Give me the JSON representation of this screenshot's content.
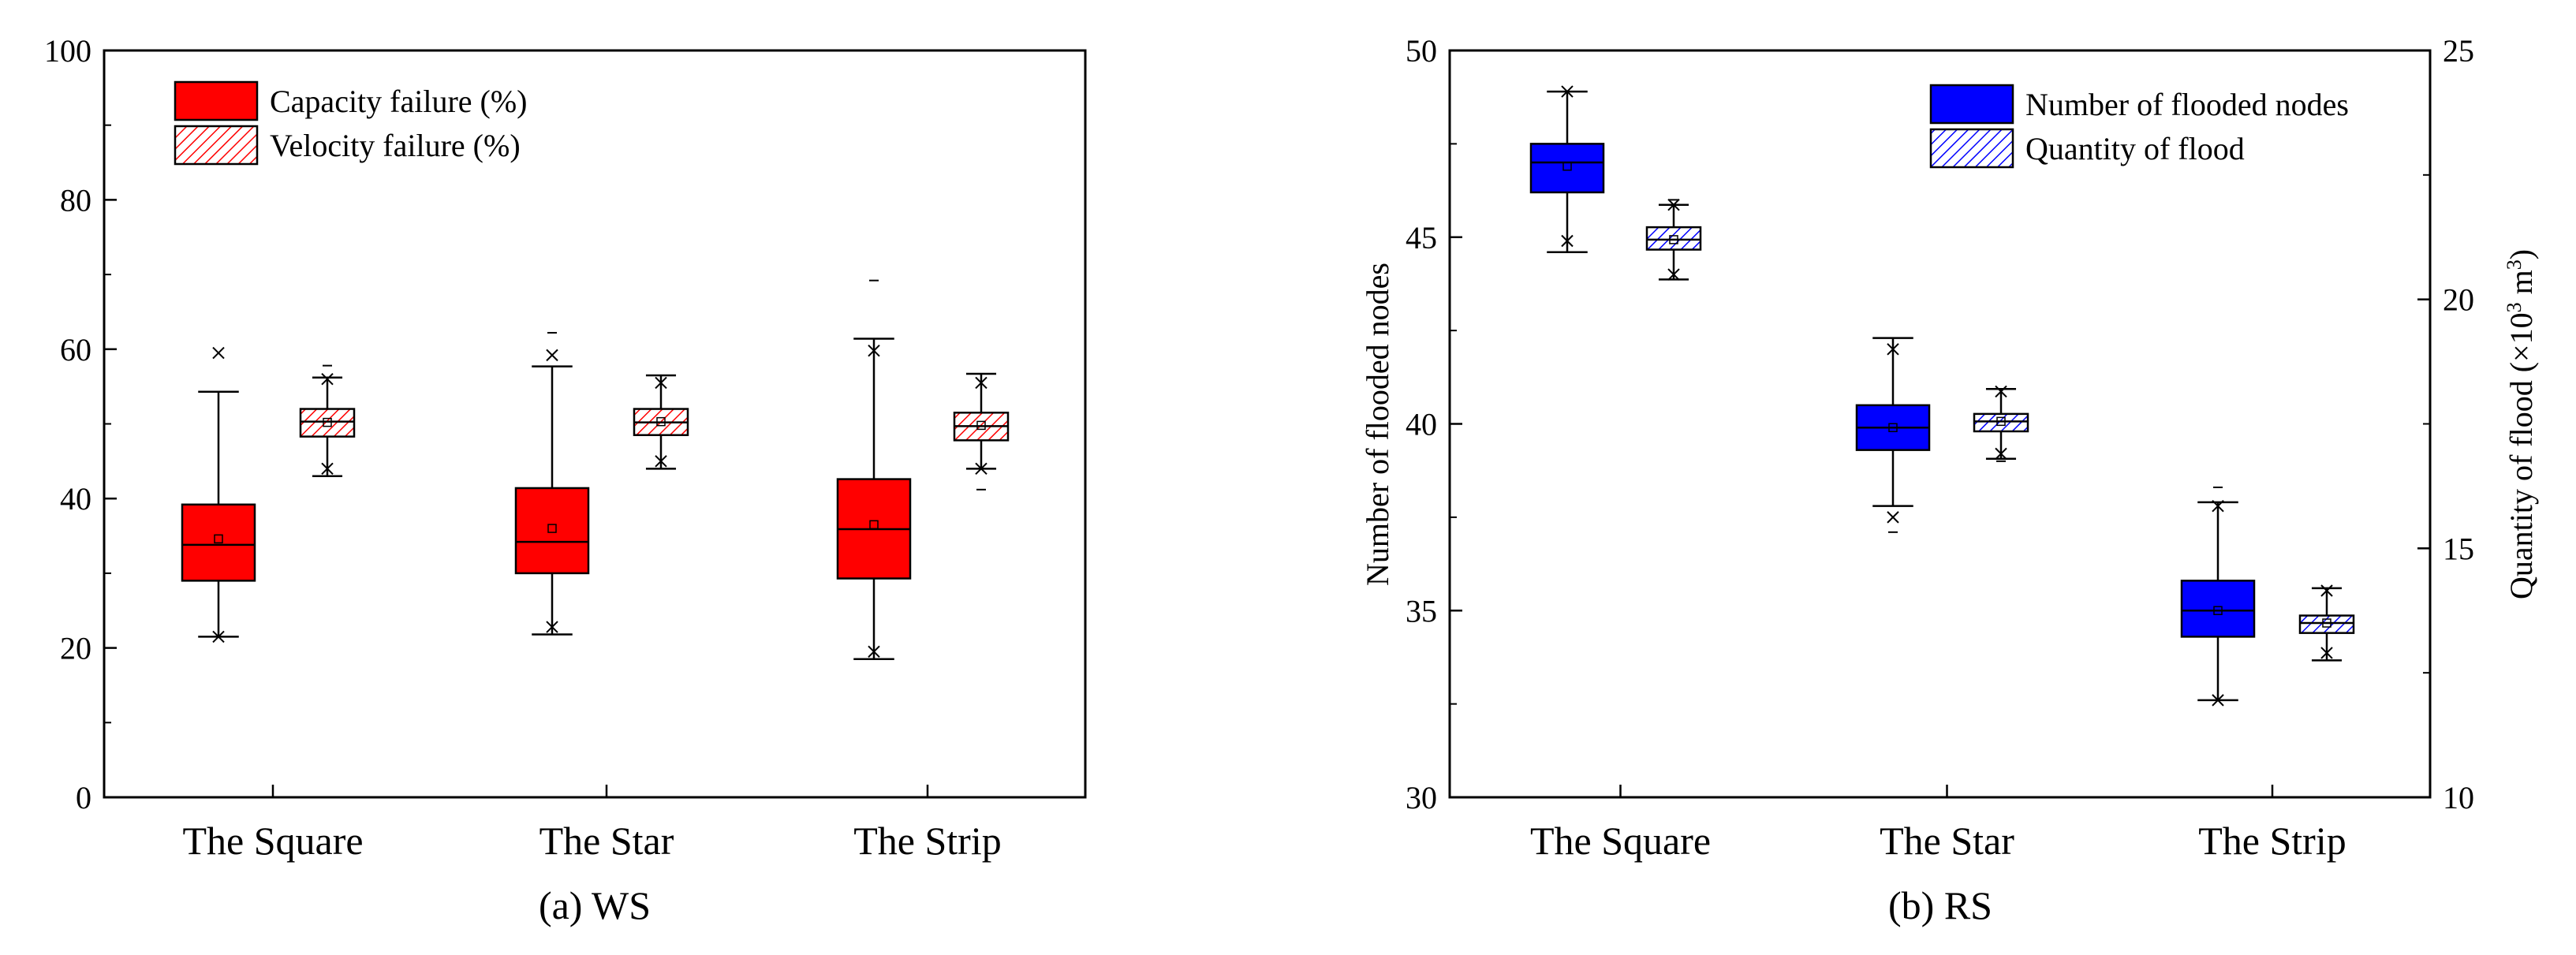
{
  "chart_data": [
    {
      "type": "box",
      "panel_label": "(a) WS",
      "categories": [
        "The Square",
        "The Star",
        "The Strip"
      ],
      "ylabel": "",
      "ylim": [
        0,
        100
      ],
      "yticks": [
        "0",
        "20",
        "40",
        "60",
        "80",
        "100"
      ],
      "grid": false,
      "legend_position": "top-left",
      "series": [
        {
          "name": "Capacity failure (%)",
          "fill": "#ff0000",
          "pattern": "solid",
          "boxes": [
            {
              "whisker_low": 21.5,
              "q1": 29.0,
              "median": 33.8,
              "mean": 34.6,
              "q3": 39.2,
              "whisker_high": 54.3,
              "extremes": [
                21.5,
                59.5
              ],
              "outliers": []
            },
            {
              "whisker_low": 21.8,
              "q1": 30.0,
              "median": 34.2,
              "mean": 36.0,
              "q3": 41.4,
              "whisker_high": 57.7,
              "extremes": [
                22.8,
                59.2
              ],
              "outliers": [
                62.2
              ]
            },
            {
              "whisker_low": 18.5,
              "q1": 29.3,
              "median": 35.9,
              "mean": 36.5,
              "q3": 42.6,
              "whisker_high": 61.4,
              "extremes": [
                19.5,
                59.8
              ],
              "outliers": [
                69.2
              ]
            }
          ]
        },
        {
          "name": "Velocity failure (%)",
          "fill": "#ff0000",
          "pattern": "hatched",
          "boxes": [
            {
              "whisker_low": 43.0,
              "q1": 48.3,
              "median": 50.3,
              "mean": 50.2,
              "q3": 52.0,
              "whisker_high": 56.2,
              "extremes": [
                44.0,
                56.0
              ],
              "outliers": [
                57.8
              ]
            },
            {
              "whisker_low": 44.0,
              "q1": 48.5,
              "median": 50.2,
              "mean": 50.3,
              "q3": 52.0,
              "whisker_high": 56.5,
              "extremes": [
                45.0,
                55.5
              ],
              "outliers": []
            },
            {
              "whisker_low": 44.0,
              "q1": 47.8,
              "median": 49.7,
              "mean": 49.8,
              "q3": 51.5,
              "whisker_high": 56.7,
              "extremes": [
                44.0,
                55.5
              ],
              "outliers": [
                41.2
              ]
            }
          ]
        }
      ]
    },
    {
      "type": "box",
      "panel_label": "(b) RS",
      "categories": [
        "The Square",
        "The Star",
        "The Strip"
      ],
      "ylabel": "Number of flooded nodes",
      "ylim": [
        30,
        50
      ],
      "yticks": [
        "30",
        "35",
        "40",
        "45",
        "50"
      ],
      "y2label": "Quantity of flood (×10³ m³)",
      "y2label_main": "Quantity of flood (×10",
      "y2label_sup": "3",
      "y2label_mid": " m",
      "y2label_sup2": "3",
      "y2label_end": ")",
      "y2lim": [
        10,
        25
      ],
      "y2ticks": [
        "10",
        "15",
        "20",
        "25"
      ],
      "grid": false,
      "legend_position": "top-right",
      "series": [
        {
          "name": "Number of flooded nodes",
          "axis": "left",
          "fill": "#0000ff",
          "pattern": "solid",
          "boxes": [
            {
              "whisker_low": 44.6,
              "q1": 46.2,
              "median": 47.0,
              "mean": 46.9,
              "q3": 47.5,
              "whisker_high": 48.9,
              "extremes": [
                44.9,
                48.9
              ],
              "outliers": []
            },
            {
              "whisker_low": 37.8,
              "q1": 39.3,
              "median": 39.9,
              "mean": 39.9,
              "q3": 40.5,
              "whisker_high": 42.3,
              "extremes": [
                37.5,
                42.0
              ],
              "outliers": [
                37.1
              ]
            },
            {
              "whisker_low": 32.6,
              "q1": 34.3,
              "median": 35.0,
              "mean": 35.0,
              "q3": 35.8,
              "whisker_high": 37.9,
              "extremes": [
                32.6,
                37.8
              ],
              "outliers": [
                38.3
              ]
            }
          ]
        },
        {
          "name": "Quantity of flood",
          "axis": "right",
          "fill": "#0000ff",
          "pattern": "hatched",
          "boxes": [
            {
              "whisker_low": 20.4,
              "q1": 21.0,
              "median": 21.2,
              "mean": 21.2,
              "q3": 21.45,
              "whisker_high": 21.9,
              "extremes": [
                20.5,
                21.9
              ],
              "outliers": [
                22.0
              ]
            },
            {
              "whisker_low": 16.8,
              "q1": 17.35,
              "median": 17.55,
              "mean": 17.55,
              "q3": 17.7,
              "whisker_high": 18.2,
              "extremes": [
                16.9,
                18.15
              ],
              "outliers": [
                16.75
              ]
            },
            {
              "whisker_low": 12.75,
              "q1": 13.3,
              "median": 13.5,
              "mean": 13.5,
              "q3": 13.65,
              "whisker_high": 14.2,
              "extremes": [
                12.9,
                14.15
              ],
              "outliers": []
            }
          ]
        }
      ]
    }
  ]
}
